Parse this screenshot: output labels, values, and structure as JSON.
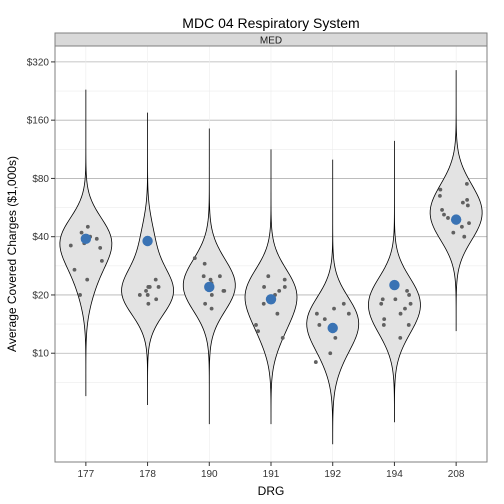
{
  "chart_data": {
    "type": "violin",
    "title": "MDC 04 Respiratory System",
    "facet_label": "MED",
    "xlabel": "DRG",
    "ylabel": "Average Covered Charges ($1,000s)",
    "y_scale": "log2",
    "ylim": [
      3.2,
      360
    ],
    "y_ticks": [
      10,
      20,
      40,
      80,
      160,
      320
    ],
    "y_tick_labels": [
      "$10",
      "$20",
      "$40",
      "$80",
      "$160",
      "$320"
    ],
    "grid": true,
    "colors": {
      "violin_fill": "#e3e3e3",
      "violin_stroke": "#000000",
      "point": "#616161",
      "mean_point": "#3a73b4",
      "panel_border": "#7f7f7f",
      "strip_fill": "#d9d9d9",
      "grid_major": "#b3b3b3",
      "grid_minor": "#ececec"
    },
    "categories": [
      "177",
      "178",
      "190",
      "191",
      "192",
      "194",
      "208"
    ],
    "groups": [
      {
        "drg": "177",
        "mean": 39,
        "range": [
          6,
          230
        ],
        "points": [
          35,
          36,
          45,
          42,
          37,
          40,
          27,
          20,
          24,
          30,
          39
        ]
      },
      {
        "drg": "178",
        "mean": 38,
        "range": [
          5.4,
          175
        ],
        "points": [
          24,
          22,
          21,
          20,
          22,
          19,
          20,
          18,
          22
        ]
      },
      {
        "drg": "190",
        "mean": 22,
        "range": [
          4.3,
          145
        ],
        "points": [
          31,
          29,
          25,
          21,
          24,
          22,
          23,
          20,
          17,
          18,
          21,
          25
        ]
      },
      {
        "drg": "191",
        "mean": 19,
        "range": [
          4.3,
          113
        ],
        "points": [
          25,
          22,
          24,
          20,
          22,
          16,
          13,
          12,
          14,
          18,
          21
        ]
      },
      {
        "drg": "192",
        "mean": 13.5,
        "range": [
          3.4,
          100
        ],
        "points": [
          18,
          17,
          16,
          14,
          15,
          16,
          10,
          9,
          13,
          12
        ]
      },
      {
        "drg": "194",
        "mean": 22.5,
        "range": [
          4.4,
          125
        ],
        "points": [
          19,
          18,
          17,
          15,
          14,
          16,
          20,
          12,
          18,
          21,
          19,
          14
        ]
      },
      {
        "drg": "208",
        "mean": 49,
        "range": [
          13,
          290
        ],
        "points": [
          75,
          70,
          65,
          62,
          55,
          50,
          52,
          45,
          42,
          40,
          58,
          60,
          47
        ]
      }
    ]
  }
}
